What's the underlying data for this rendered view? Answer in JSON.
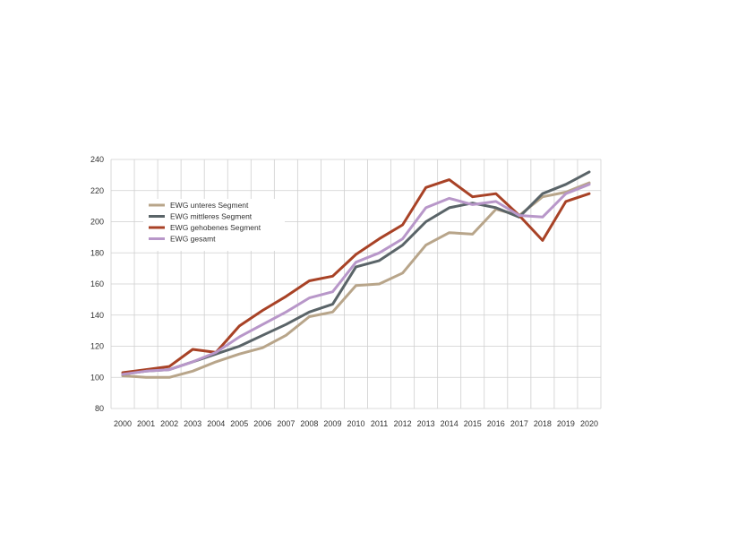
{
  "chart_data": {
    "type": "line",
    "title": "",
    "xlabel": "",
    "ylabel": "",
    "ylim": [
      80,
      240
    ],
    "yticks": [
      80,
      100,
      120,
      140,
      160,
      180,
      200,
      220,
      240
    ],
    "grid": true,
    "legend_position": "top-left",
    "x": [
      "2000",
      "2001",
      "2002",
      "2003",
      "2004",
      "2005",
      "2006",
      "2007",
      "2008",
      "2009",
      "2010",
      "2011",
      "2012",
      "2013",
      "2014",
      "2015",
      "2016",
      "2017",
      "2018",
      "2019",
      "2020"
    ],
    "series": [
      {
        "name": "EWG unteres Segment",
        "color": "#b8a58a",
        "values": [
          101,
          100,
          100,
          104,
          110,
          115,
          119,
          127,
          139,
          142,
          159,
          160,
          167,
          185,
          193,
          192,
          208,
          204,
          216,
          219,
          225
        ]
      },
      {
        "name": "EWG mittleres Segment",
        "color": "#5a6468",
        "values": [
          102,
          104,
          105,
          110,
          115,
          120,
          127,
          134,
          142,
          147,
          171,
          175,
          185,
          200,
          209,
          212,
          209,
          203,
          218,
          224,
          232
        ]
      },
      {
        "name": "EWG gehobenes Segment",
        "color": "#a84226",
        "values": [
          103,
          105,
          107,
          118,
          116,
          133,
          143,
          152,
          162,
          165,
          179,
          189,
          198,
          222,
          227,
          216,
          218,
          204,
          188,
          213,
          218
        ]
      },
      {
        "name": "EWG gesamt",
        "color": "#b897c9",
        "values": [
          102,
          104,
          105,
          110,
          116,
          126,
          134,
          142,
          151,
          155,
          174,
          180,
          189,
          209,
          215,
          211,
          213,
          204,
          203,
          218,
          224
        ]
      }
    ]
  }
}
